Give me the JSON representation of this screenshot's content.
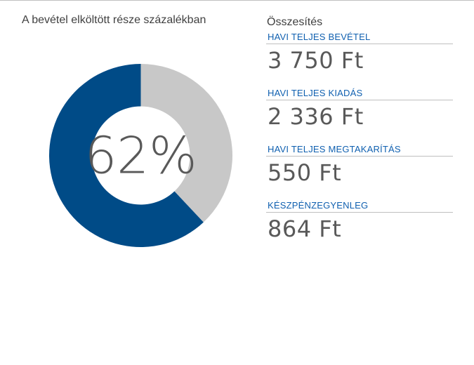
{
  "chart_data": {
    "type": "pie",
    "title": "A bevétel elköltött része százalékban",
    "center_label": "62%",
    "slices": [
      {
        "value": 62,
        "color": "#004b87"
      },
      {
        "value": 38,
        "color": "#c8c8c8"
      }
    ]
  },
  "summary": {
    "title": "Összesítés",
    "metrics": [
      {
        "label": "HAVI TELJES BEVÉTEL",
        "value": "3 750 Ft"
      },
      {
        "label": "HAVI TELJES KIADÁS",
        "value": "2 336 Ft"
      },
      {
        "label": "HAVI TELJES MEGTAKARÍTÁS",
        "value": "550 Ft"
      },
      {
        "label": "KÉSZPÉNZEGYENLEG",
        "value": "864 Ft"
      }
    ]
  },
  "colors": {
    "accent": "#1060b0",
    "spent": "#004b87",
    "remaining": "#c8c8c8",
    "value_text": "#595959"
  }
}
